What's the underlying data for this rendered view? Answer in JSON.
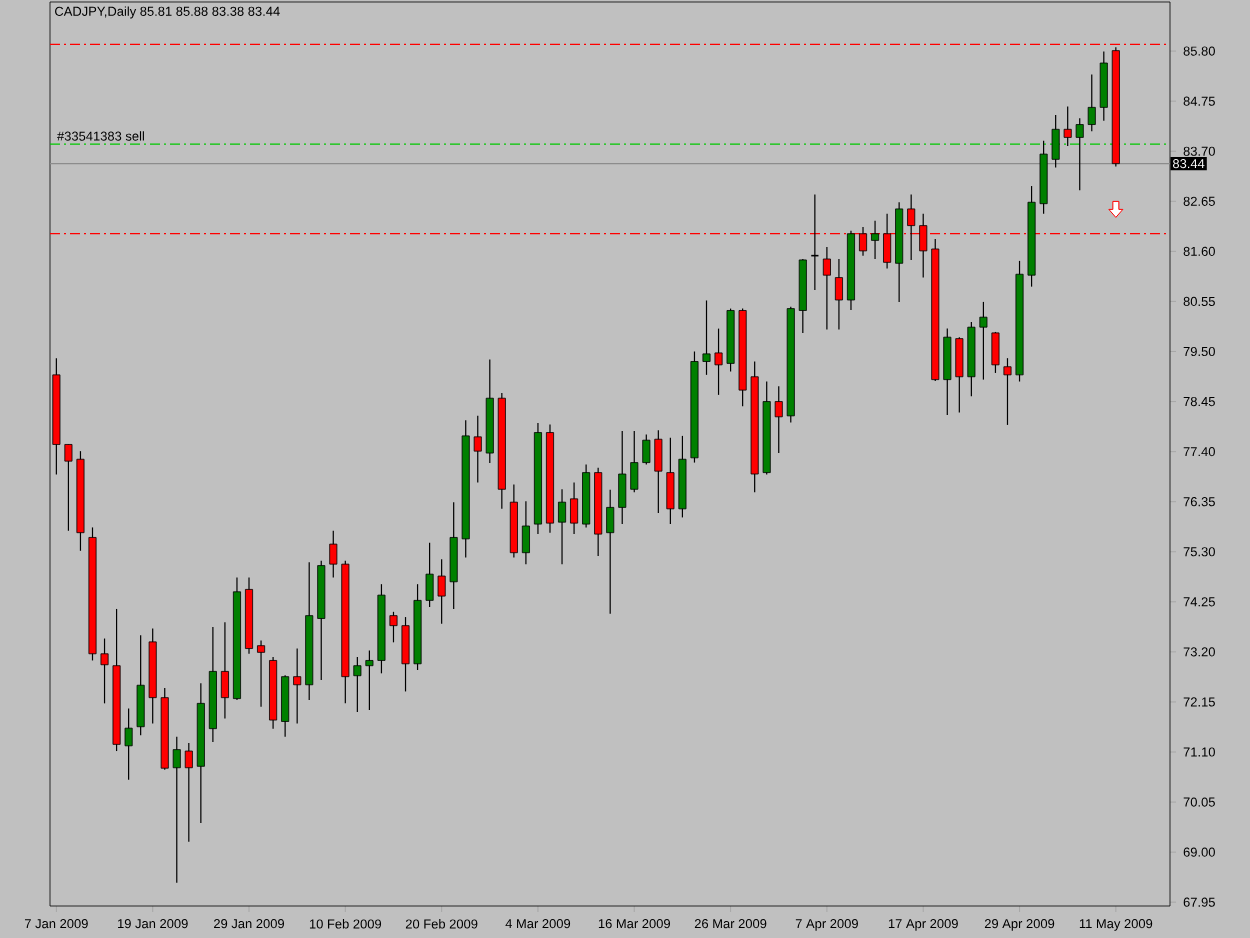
{
  "chart_data": {
    "type": "candlestick",
    "title": "CADJPY,Daily  85.81 85.88 83.38 83.44",
    "categories": [
      "7 Jan 2009",
      null,
      null,
      null,
      null,
      null,
      null,
      null,
      "19 Jan 2009",
      null,
      null,
      null,
      null,
      null,
      null,
      null,
      "29 Jan 2009",
      null,
      null,
      null,
      null,
      null,
      null,
      null,
      "10 Feb 2009",
      null,
      null,
      null,
      null,
      null,
      null,
      null,
      "20 Feb 2009",
      null,
      null,
      null,
      null,
      null,
      null,
      null,
      "4 Mar 2009",
      null,
      null,
      null,
      null,
      null,
      null,
      null,
      "16 Mar 2009",
      null,
      null,
      null,
      null,
      null,
      null,
      null,
      "26 Mar 2009",
      null,
      null,
      null,
      null,
      null,
      null,
      null,
      "7 Apr 2009",
      null,
      null,
      null,
      null,
      null,
      null,
      null,
      "17 Apr 2009",
      null,
      null,
      null,
      null,
      null,
      null,
      null,
      "29 Apr 2009",
      null,
      null,
      null,
      null,
      null,
      null,
      null,
      "11 May 2009"
    ],
    "ohlc": [
      [
        79.01,
        79.36,
        76.92,
        77.55
      ],
      [
        77.55,
        77.55,
        75.74,
        77.2
      ],
      [
        77.24,
        77.41,
        75.32,
        75.7
      ],
      [
        75.6,
        75.81,
        73.02,
        73.16
      ],
      [
        73.16,
        73.48,
        72.12,
        72.93
      ],
      [
        72.91,
        74.1,
        71.12,
        71.26
      ],
      [
        71.23,
        72.01,
        70.52,
        71.6
      ],
      [
        71.63,
        73.55,
        71.45,
        72.5
      ],
      [
        73.41,
        73.69,
        71.7,
        72.24
      ],
      [
        72.24,
        72.44,
        70.73,
        70.76
      ],
      [
        70.77,
        71.42,
        68.36,
        71.15
      ],
      [
        71.12,
        71.29,
        69.22,
        70.77
      ],
      [
        70.8,
        72.54,
        69.61,
        72.12
      ],
      [
        71.59,
        73.72,
        71.31,
        72.79
      ],
      [
        72.79,
        73.82,
        71.8,
        72.24
      ],
      [
        72.22,
        74.76,
        72.19,
        74.46
      ],
      [
        74.51,
        74.76,
        73.16,
        73.27
      ],
      [
        73.33,
        73.44,
        72.05,
        73.19
      ],
      [
        73.02,
        73.09,
        71.59,
        71.77
      ],
      [
        71.74,
        72.71,
        71.42,
        72.68
      ],
      [
        72.68,
        73.27,
        71.7,
        72.51
      ],
      [
        72.51,
        75.08,
        72.19,
        73.96
      ],
      [
        73.9,
        75.11,
        72.61,
        75.01
      ],
      [
        75.46,
        75.74,
        74.76,
        75.04
      ],
      [
        75.04,
        75.11,
        72.12,
        72.68
      ],
      [
        72.7,
        73.09,
        71.94,
        72.91
      ],
      [
        72.91,
        73.23,
        71.98,
        73.02
      ],
      [
        73.02,
        74.62,
        72.75,
        74.39
      ],
      [
        73.96,
        74.04,
        73.4,
        73.75
      ],
      [
        73.75,
        73.93,
        72.37,
        72.95
      ],
      [
        72.95,
        74.62,
        72.82,
        74.28
      ],
      [
        74.28,
        75.49,
        74.14,
        74.83
      ],
      [
        74.79,
        75.14,
        73.79,
        74.37
      ],
      [
        74.67,
        76.34,
        74.1,
        75.6
      ],
      [
        75.57,
        78.06,
        75.18,
        77.73
      ],
      [
        77.71,
        78.15,
        76.75,
        77.41
      ],
      [
        77.37,
        79.33,
        77.16,
        78.52
      ],
      [
        78.52,
        78.63,
        76.2,
        76.61
      ],
      [
        76.34,
        76.71,
        75.18,
        75.28
      ],
      [
        75.28,
        76.36,
        75.04,
        75.84
      ],
      [
        75.88,
        78.0,
        75.67,
        77.8
      ],
      [
        77.8,
        77.97,
        75.7,
        75.9
      ],
      [
        75.92,
        76.61,
        75.04,
        76.34
      ],
      [
        76.41,
        76.75,
        75.67,
        75.9
      ],
      [
        75.88,
        77.13,
        75.81,
        76.96
      ],
      [
        76.96,
        77.06,
        75.21,
        75.67
      ],
      [
        75.7,
        76.6,
        74.0,
        76.23
      ],
      [
        76.23,
        77.83,
        75.88,
        76.93
      ],
      [
        76.61,
        77.83,
        76.55,
        77.17
      ],
      [
        77.17,
        77.76,
        77.13,
        77.64
      ],
      [
        77.66,
        77.85,
        76.11,
        76.99
      ],
      [
        76.96,
        77.69,
        75.88,
        76.2
      ],
      [
        76.2,
        77.73,
        76.02,
        77.24
      ],
      [
        77.27,
        79.5,
        77.17,
        79.29
      ],
      [
        79.29,
        80.57,
        79.01,
        79.45
      ],
      [
        79.47,
        79.98,
        78.59,
        79.22
      ],
      [
        79.25,
        80.4,
        79.08,
        80.36
      ],
      [
        80.36,
        80.4,
        78.35,
        78.69
      ],
      [
        78.97,
        79.29,
        76.55,
        76.93
      ],
      [
        76.96,
        78.87,
        76.92,
        78.45
      ],
      [
        78.45,
        78.77,
        77.37,
        78.13
      ],
      [
        78.15,
        80.44,
        78.01,
        80.4
      ],
      [
        80.36,
        81.44,
        79.89,
        81.42
      ],
      [
        81.51,
        82.79,
        80.79,
        81.51
      ],
      [
        81.44,
        81.69,
        79.96,
        81.1
      ],
      [
        81.05,
        81.44,
        79.96,
        80.58
      ],
      [
        80.58,
        82.03,
        80.37,
        81.97
      ],
      [
        81.97,
        82.11,
        81.51,
        81.61
      ],
      [
        81.83,
        82.24,
        81.44,
        81.97
      ],
      [
        81.97,
        82.39,
        81.24,
        81.37
      ],
      [
        81.35,
        82.63,
        80.54,
        82.49
      ],
      [
        82.49,
        82.79,
        81.42,
        82.14
      ],
      [
        82.14,
        82.39,
        81.05,
        81.61
      ],
      [
        81.65,
        81.86,
        78.88,
        78.91
      ],
      [
        78.91,
        79.98,
        78.17,
        79.8
      ],
      [
        79.77,
        79.8,
        78.22,
        78.97
      ],
      [
        78.97,
        80.12,
        78.56,
        80.01
      ],
      [
        80.01,
        80.54,
        78.91,
        80.22
      ],
      [
        79.89,
        79.91,
        79.05,
        79.22
      ],
      [
        79.18,
        79.36,
        77.96,
        79.01
      ],
      [
        79.01,
        81.4,
        78.87,
        81.12
      ],
      [
        81.1,
        82.97,
        80.86,
        82.63
      ],
      [
        82.6,
        83.92,
        82.39,
        83.64
      ],
      [
        83.53,
        84.46,
        83.36,
        84.16
      ],
      [
        84.16,
        84.64,
        83.81,
        83.99
      ],
      [
        83.99,
        84.39,
        82.88,
        84.26
      ],
      [
        84.26,
        85.31,
        84.12,
        84.62
      ],
      [
        84.62,
        85.79,
        84.34,
        85.55
      ],
      [
        85.81,
        85.88,
        83.38,
        83.44
      ]
    ],
    "ylim": [
      67.87,
      86.83
    ],
    "yticks": [
      {
        "value": 85.8,
        "label": "85.80"
      },
      84.75,
      {
        "value": 83.7,
        "label": "83.70"
      },
      82.65,
      {
        "value": 81.6,
        "label": "81.60"
      },
      80.55,
      {
        "value": 79.5,
        "label": "79.50"
      },
      78.45,
      {
        "value": 77.4,
        "label": "77.40"
      },
      76.35,
      {
        "value": 75.3,
        "label": "75.30"
      },
      74.25,
      {
        "value": 73.2,
        "label": "73.20"
      },
      72.15,
      {
        "value": 71.1,
        "label": "71.10"
      },
      70.05,
      {
        "value": 69.0,
        "label": "69.00"
      },
      67.95
    ],
    "ref_lines": [
      {
        "axis": "y",
        "value": 85.94,
        "color": "#ff0000",
        "line_style": "dashdot"
      },
      {
        "axis": "y",
        "value": 83.85,
        "label": "#33541383 sell",
        "color": "#00c800",
        "line_style": "dashdot"
      },
      {
        "axis": "y",
        "value": 83.44,
        "label": "83.44",
        "color": "#8c8c8c",
        "line_style": "solid"
      },
      {
        "axis": "y",
        "value": 81.97,
        "color": "#ff0000",
        "line_style": "dashdot"
      }
    ]
  }
}
